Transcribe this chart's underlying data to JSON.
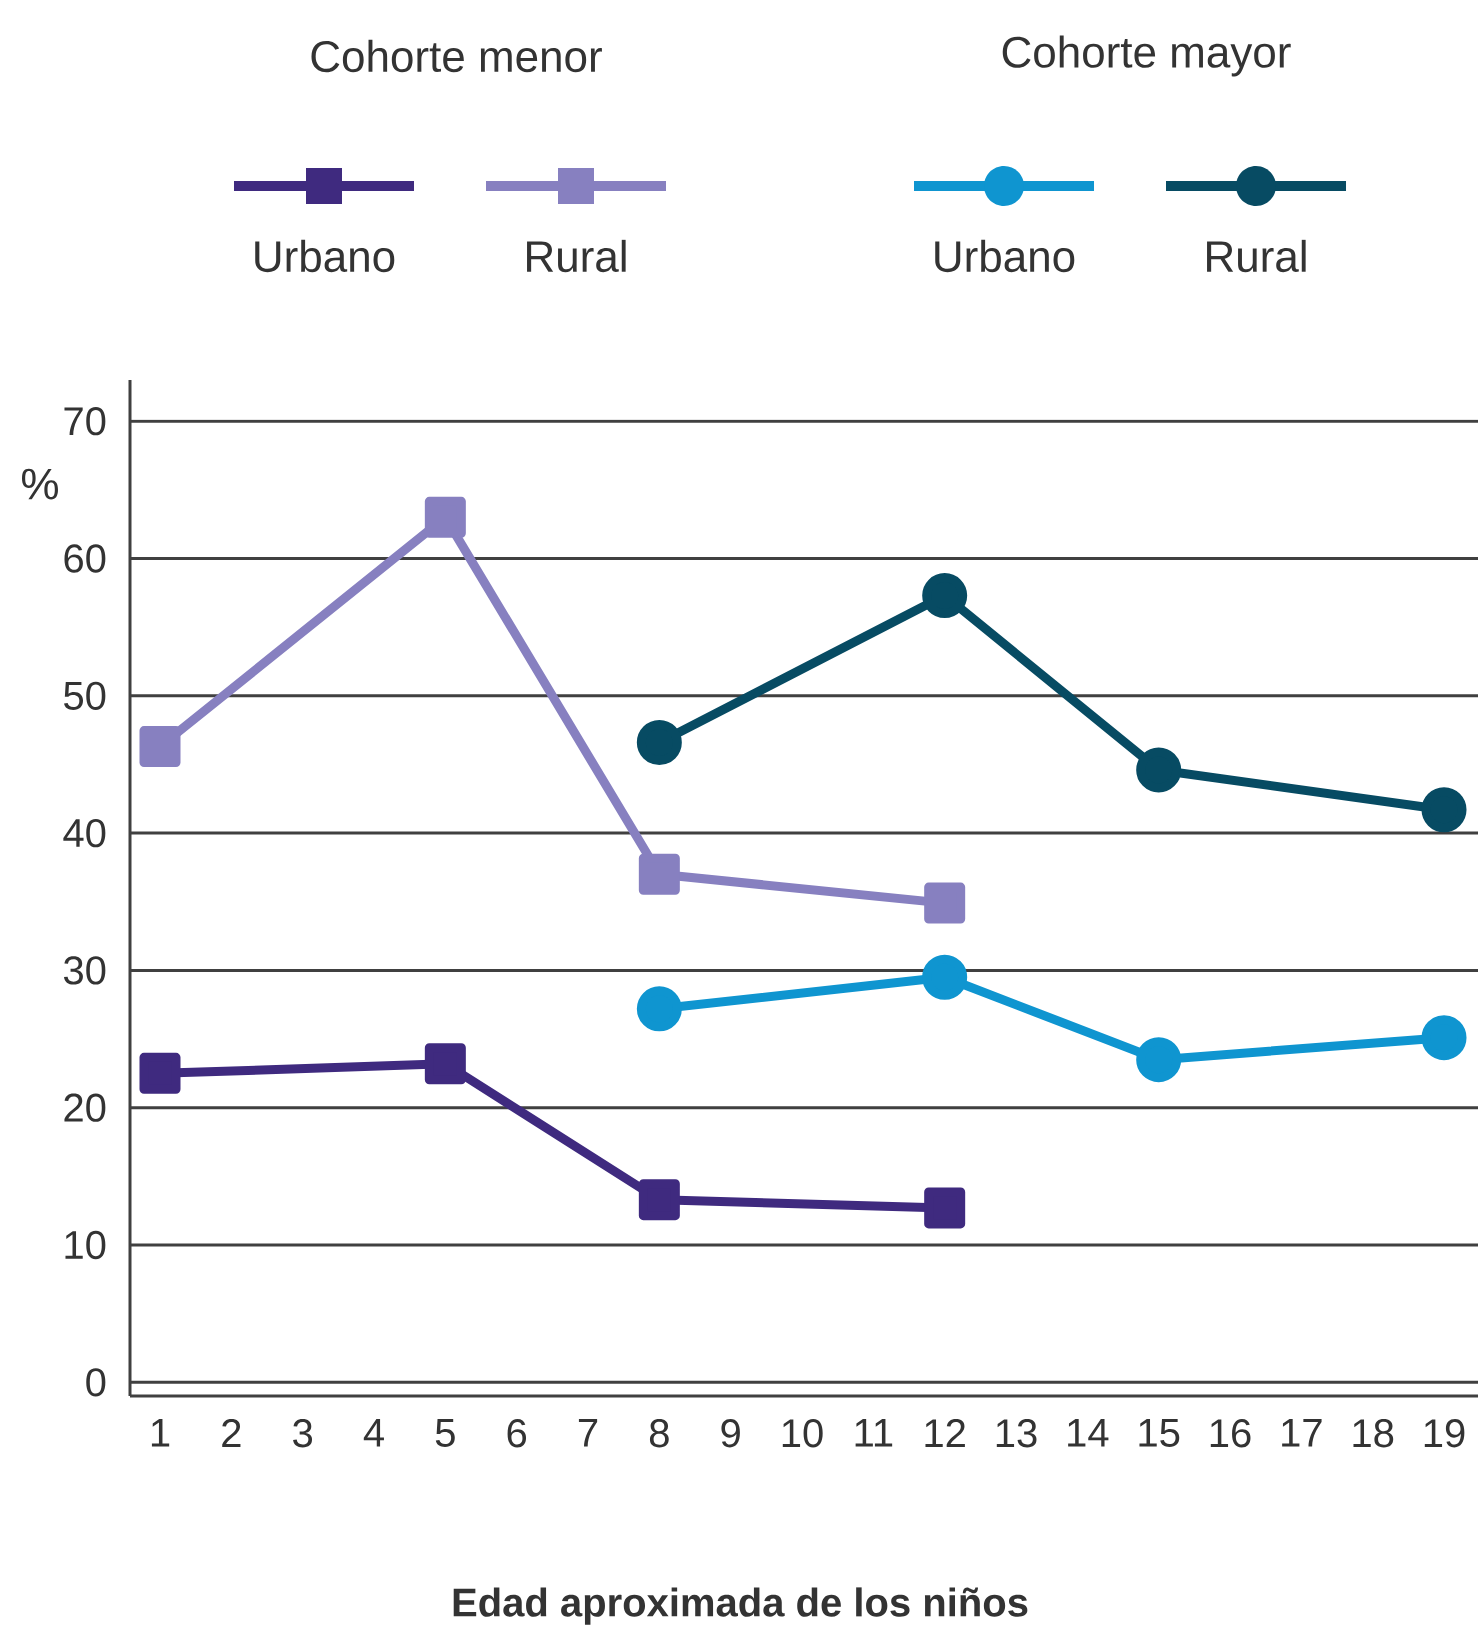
{
  "chart_data": {
    "type": "line",
    "ylabel": "%",
    "xlabel": "Edad aproximada de los niños",
    "categories": [
      "1",
      "2",
      "3",
      "4",
      "5",
      "6",
      "7",
      "8",
      "9",
      "10",
      "11",
      "12",
      "13",
      "14",
      "15",
      "16",
      "17",
      "18",
      "19"
    ],
    "series": [
      {
        "name": "Urbano",
        "color": "#3f2a7f",
        "marker": "square",
        "values": [
          22.5,
          null,
          null,
          null,
          23.2,
          null,
          null,
          13.3,
          null,
          null,
          null,
          12.7,
          null,
          null,
          null,
          null,
          null,
          null,
          null
        ]
      },
      {
        "name": "Rural",
        "color": "#8780c0",
        "marker": "square",
        "values": [
          46.3,
          null,
          null,
          null,
          63.0,
          null,
          null,
          37.0,
          null,
          null,
          null,
          34.9,
          null,
          null,
          null,
          null,
          null,
          null,
          null
        ]
      },
      {
        "name": "Urbano",
        "color": "#0f95d0",
        "marker": "circle",
        "values": [
          null,
          null,
          null,
          null,
          null,
          null,
          null,
          27.2,
          null,
          null,
          null,
          29.5,
          null,
          null,
          23.5,
          null,
          null,
          null,
          25.1
        ]
      },
      {
        "name": "Rural",
        "color": "#074b63",
        "marker": "circle",
        "values": [
          null,
          null,
          null,
          null,
          null,
          null,
          null,
          46.6,
          null,
          null,
          null,
          57.3,
          null,
          null,
          44.6,
          null,
          null,
          null,
          41.7
        ]
      }
    ],
    "annotations": [
      "Cohorte menor",
      "Cohorte mayor"
    ],
    "ylim": [
      -1,
      73
    ],
    "yticks": [
      0,
      10,
      20,
      30,
      40,
      50,
      60,
      70
    ],
    "grid": "y",
    "legend": "top",
    "line_style": "solid"
  }
}
